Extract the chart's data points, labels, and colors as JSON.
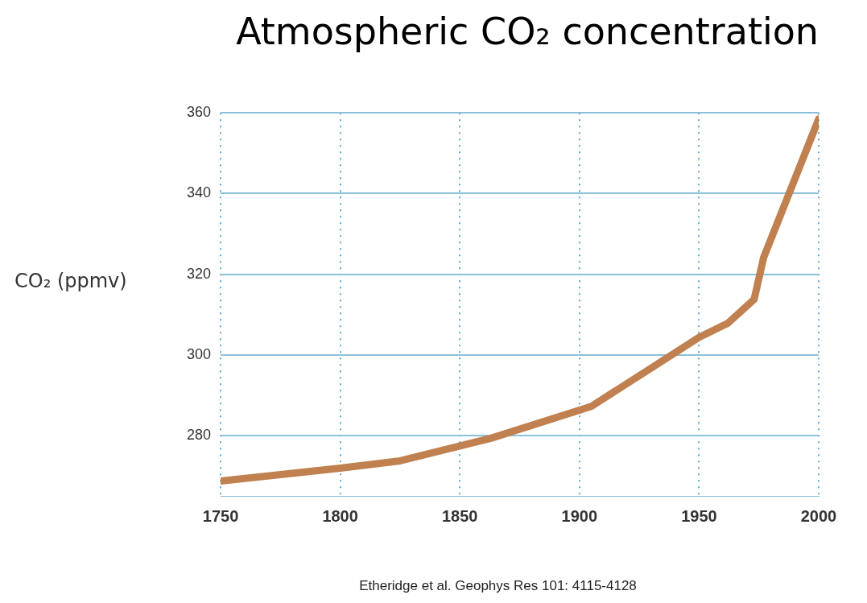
{
  "chart_data": {
    "type": "line",
    "title": "Atmospheric CO₂ concentration",
    "ylabel": "CO₂ (ppmv)",
    "annotations": [
      "Etheridge et al. Geophys Res 101: 4115-4128"
    ],
    "x": [
      1750,
      1800,
      1825,
      1863,
      1905,
      1950,
      1962,
      1973,
      1977,
      2000
    ],
    "series": [
      {
        "color": "#c0804f",
        "values": [
          268.8,
          272,
          273.8,
          279.4,
          287.3,
          304.4,
          307.9,
          313.8,
          324.2,
          358.5
        ]
      }
    ],
    "xlim": [
      1750,
      2000
    ],
    "xticks": [
      1750,
      1800,
      1850,
      1900,
      1950,
      2000
    ],
    "ylim": [
      265,
      360
    ],
    "yticks": [
      280,
      300,
      320,
      340,
      360
    ],
    "grid": true,
    "legend": false,
    "marker": "none",
    "line_style": "solid"
  }
}
